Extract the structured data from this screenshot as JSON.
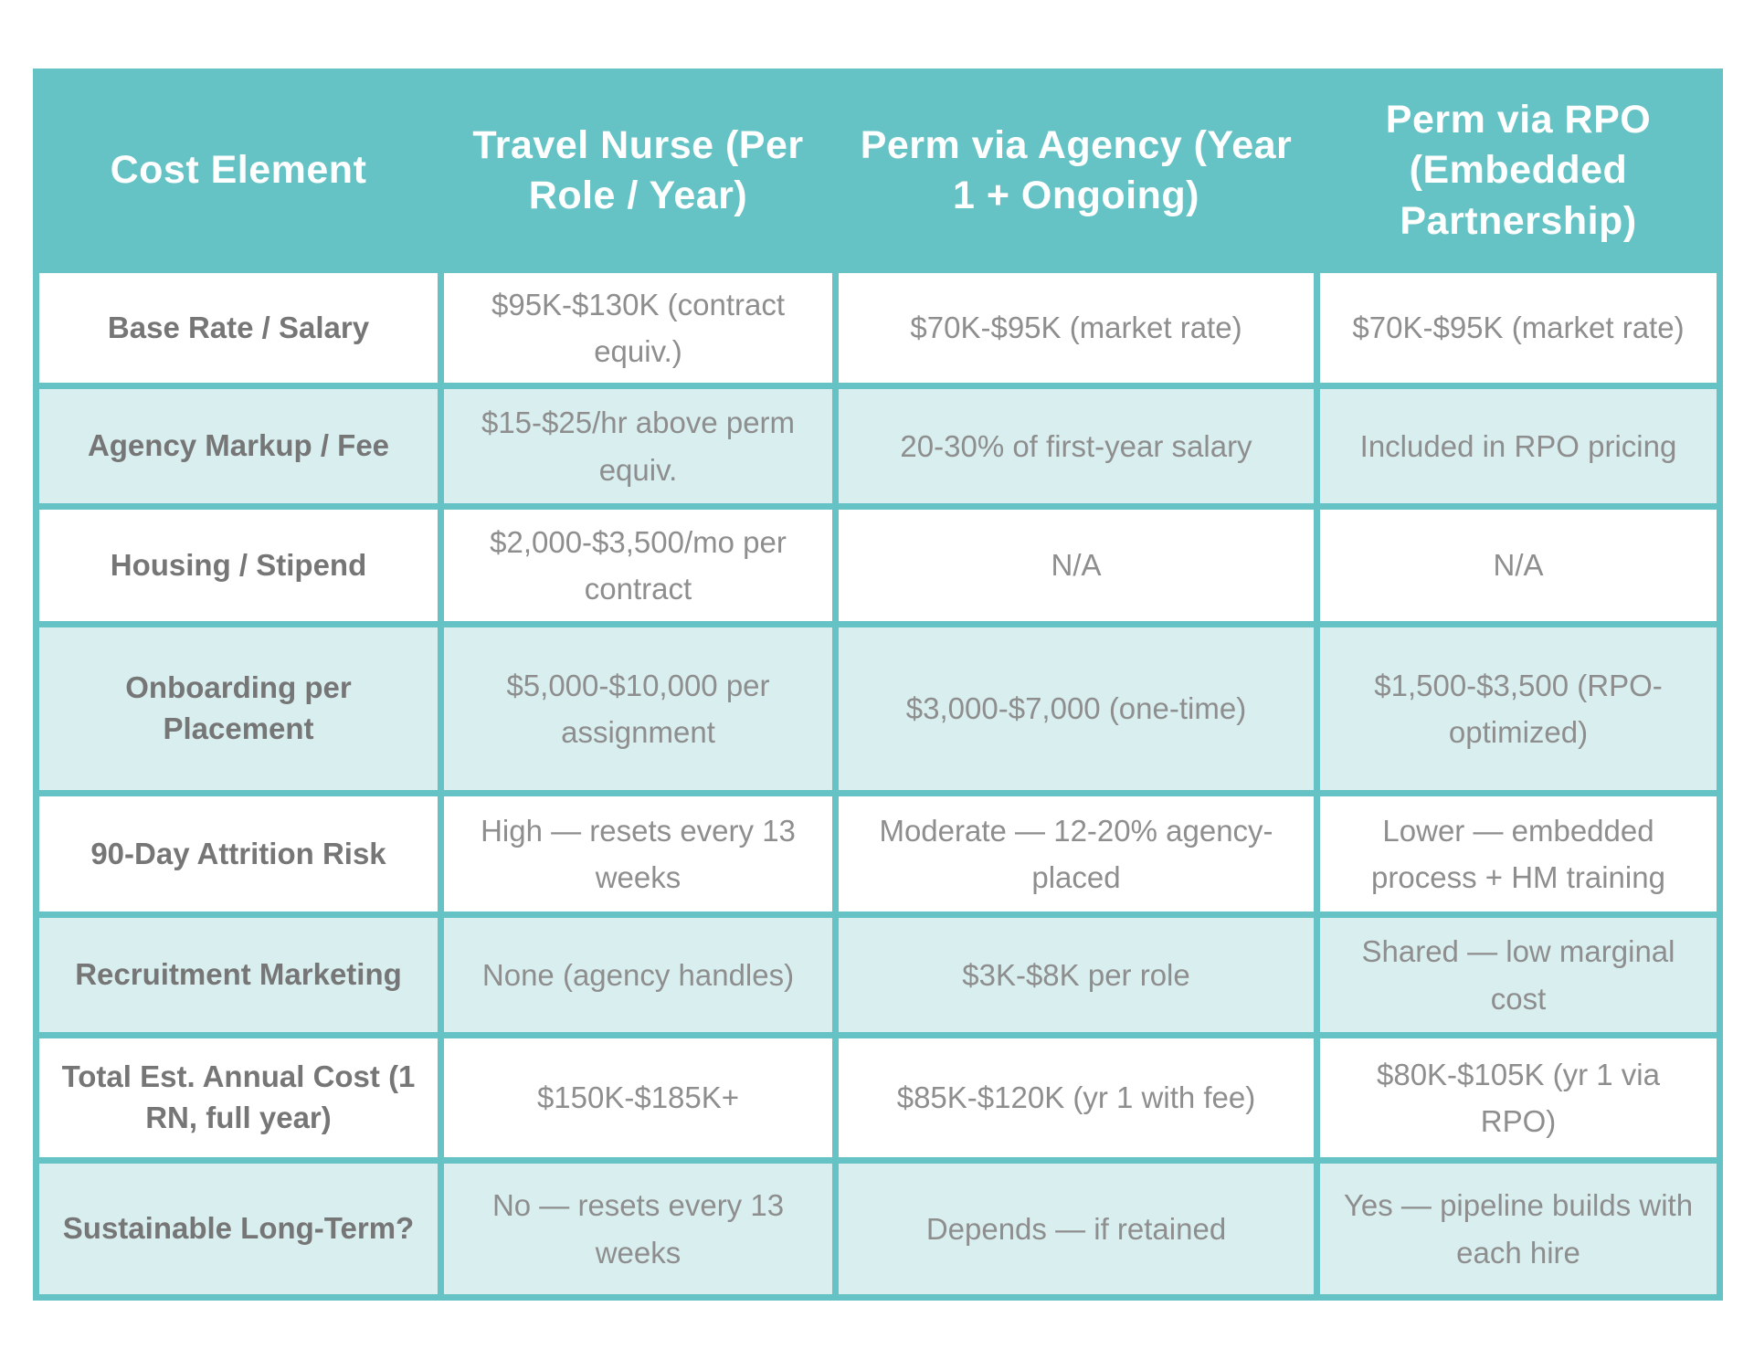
{
  "chart_data": {
    "type": "table",
    "title": "",
    "columns": [
      "Cost Element",
      "Travel Nurse (Per Role / Year)",
      "Perm via Agency (Year 1 + Ongoing)",
      "Perm via RPO (Embedded Partnership)"
    ],
    "rows": [
      [
        "Base Rate / Salary",
        "$95K-$130K (contract equiv.)",
        "$70K-$95K (market rate)",
        "$70K-$95K (market rate)"
      ],
      [
        "Agency Markup / Fee",
        "$15-$25/hr above perm equiv.",
        "20-30% of first-year salary",
        "Included in RPO pricing"
      ],
      [
        "Housing / Stipend",
        "$2,000-$3,500/mo per contract",
        "N/A",
        "N/A"
      ],
      [
        "Onboarding per Placement",
        "$5,000-$10,000 per assignment",
        "$3,000-$7,000 (one-time)",
        "$1,500-$3,500 (RPO-optimized)"
      ],
      [
        "90-Day Attrition Risk",
        "High — resets every 13 weeks",
        "Moderate — 12-20% agency-placed",
        "Lower — embedded process + HM training"
      ],
      [
        "Recruitment Marketing",
        "None (agency handles)",
        "$3K-$8K per role",
        "Shared — low marginal cost"
      ],
      [
        "Total Est. Annual Cost (1 RN, full year)",
        "$150K-$185K+",
        "$85K-$120K (yr 1 with fee)",
        "$80K-$105K (yr 1 via RPO)"
      ],
      [
        "Sustainable Long-Term?",
        "No — resets every 13 weeks",
        "Depends — if retained",
        "Yes — pipeline builds with each hire"
      ]
    ],
    "emphasized_rows": [
      6,
      7
    ],
    "colors": {
      "header_background": "#66C3C5",
      "grid_border": "#66C3C5",
      "alt_row_background": "#D9EEEF",
      "header_text": "#FFFFFF",
      "label_text": "#767676",
      "value_text": "#8E8E8E"
    }
  }
}
